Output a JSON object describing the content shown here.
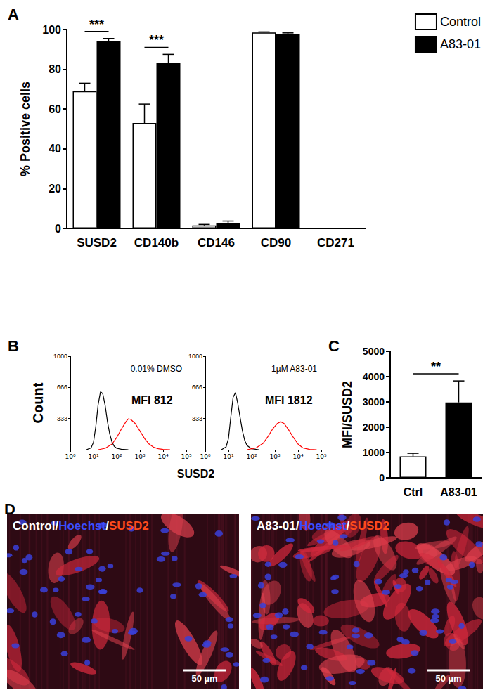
{
  "chart_data": [
    {
      "type": "bar",
      "title": "A",
      "categories": [
        "SUSD2",
        "CD140b",
        "CD146",
        "CD90",
        "CD271"
      ],
      "series": [
        {
          "name": "Control",
          "color": "#ffffff",
          "values": [
            69,
            53,
            1.5,
            98.5,
            0
          ],
          "errors": [
            4,
            9.5,
            0.5,
            0.3,
            0
          ]
        },
        {
          "name": "A83-01",
          "color": "#000000",
          "values": [
            94,
            83,
            2.5,
            97.5,
            0
          ],
          "errors": [
            1.5,
            4.5,
            1.2,
            0.8,
            0
          ]
        }
      ],
      "ylabel": "% Positive cells",
      "ylim": [
        0,
        100
      ],
      "yticks": [
        0,
        20,
        40,
        60,
        80,
        100
      ],
      "legend": "top-right",
      "annotations": [
        {
          "text": "***",
          "category": "SUSD2"
        },
        {
          "text": "***",
          "category": "CD140b"
        }
      ]
    },
    {
      "type": "line",
      "title": "B",
      "series": [
        {
          "color": "#000000",
          "x": [
            5,
            7.9,
            10,
            12.6,
            15.8,
            20,
            25,
            32,
            40,
            50,
            63,
            79,
            100,
            158,
            316
          ],
          "values": [
            0,
            20,
            80,
            250,
            480,
            620,
            600,
            470,
            300,
            170,
            80,
            35,
            15,
            5,
            0
          ]
        },
        {
          "color": "#ff0000",
          "x": [
            16,
            32,
            63,
            100,
            158,
            251,
            316,
            398,
            631,
            1000,
            1585,
            2512,
            3981,
            6310,
            10000,
            19953
          ],
          "values": [
            0,
            15,
            60,
            130,
            220,
            300,
            330,
            325,
            280,
            200,
            120,
            60,
            25,
            10,
            3,
            0
          ]
        }
      ],
      "xlabel": "SUSD2",
      "ylabel": "Count",
      "log": "x",
      "xlim": [
        1,
        100000
      ],
      "xticks": [
        {
          "value": 1,
          "label": "10⁰"
        },
        {
          "value": 10,
          "label": "10¹"
        },
        {
          "value": 100,
          "label": "10²"
        },
        {
          "value": 1000,
          "label": "10³"
        },
        {
          "value": 10000,
          "label": "10⁴"
        },
        {
          "value": 100000,
          "label": "10⁵"
        }
      ],
      "ylim": [
        0,
        1000
      ],
      "yticks": [
        333,
        666,
        1000
      ],
      "annotations": [
        {
          "text": "0.01% DMSO"
        },
        {
          "text": "MFI 812",
          "gate": {
            "x": [
              112,
              100000
            ],
            "y": 430
          }
        }
      ]
    },
    {
      "type": "line",
      "series": [
        {
          "color": "#000000",
          "x": [
            5,
            7.9,
            10,
            12.6,
            15.8,
            20,
            25,
            32,
            40,
            50,
            63,
            100,
            200
          ],
          "values": [
            0,
            30,
            120,
            350,
            560,
            610,
            500,
            340,
            200,
            100,
            45,
            10,
            0
          ]
        },
        {
          "color": "#ff0000",
          "x": [
            63,
            158,
            316,
            501,
            794,
            1259,
            1778,
            2512,
            3981,
            6310,
            10000,
            15849,
            31623,
            63096
          ],
          "values": [
            0,
            20,
            70,
            140,
            220,
            280,
            300,
            280,
            210,
            130,
            60,
            20,
            3,
            0
          ]
        }
      ],
      "log": "x",
      "xlim": [
        1,
        100000
      ],
      "xticks": [
        {
          "value": 1,
          "label": "10⁰"
        },
        {
          "value": 10,
          "label": "10¹"
        },
        {
          "value": 100,
          "label": "10²"
        },
        {
          "value": 1000,
          "label": "10³"
        },
        {
          "value": 10000,
          "label": "10⁴"
        },
        {
          "value": 100000,
          "label": "10⁵"
        }
      ],
      "ylim": [
        0,
        1000
      ],
      "yticks": [
        333,
        666,
        1000
      ],
      "annotations": [
        {
          "text": "1µM A83-01"
        },
        {
          "text": "MFI 1812",
          "gate": {
            "x": [
              158,
              100000
            ],
            "y": 430
          }
        }
      ]
    },
    {
      "type": "bar",
      "title": "C",
      "categories": [
        "Ctrl",
        "A83-01"
      ],
      "values": [
        850,
        2980
      ],
      "errors": [
        120,
        850
      ],
      "colors": [
        "#ffffff",
        "#000000"
      ],
      "ylabel": "MFI/SUSD2",
      "ylim": [
        0,
        5000
      ],
      "yticks": [
        0,
        1000,
        2000,
        3000,
        4000,
        5000
      ],
      "annotations": [
        {
          "text": "**",
          "categories": [
            "Ctrl",
            "A83-01"
          ]
        }
      ]
    }
  ],
  "images": {
    "title": "D",
    "panels": [
      {
        "label": [
          {
            "text": "Control/",
            "color": "#ffffff"
          },
          {
            "text": "Hoechst",
            "color": "#3a4cff"
          },
          {
            "text": "/",
            "color": "#ffffff"
          },
          {
            "text": "SUSD2",
            "color": "#ff4a1c"
          }
        ],
        "scale_bar": "50 µm"
      },
      {
        "label": [
          {
            "text": "A83-01/",
            "color": "#ffffff"
          },
          {
            "text": "Hoechst",
            "color": "#3a4cff"
          },
          {
            "text": "/",
            "color": "#ffffff"
          },
          {
            "text": "SUSD2",
            "color": "#ff4a1c"
          }
        ],
        "scale_bar": "50 µm"
      }
    ]
  }
}
